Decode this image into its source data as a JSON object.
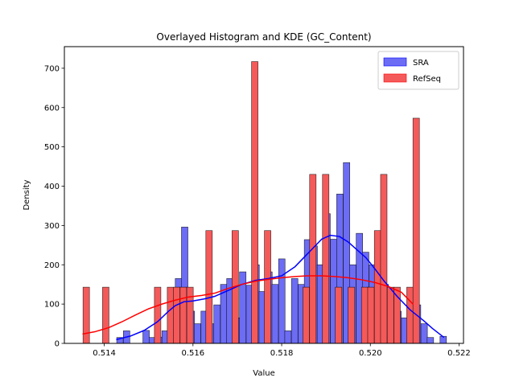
{
  "chart_data": {
    "type": "bar",
    "title": "Overlayed Histogram and KDE (GC_Content)",
    "xlabel": "Value",
    "ylabel": "Density",
    "xlim": [
      0.5131,
      0.5221
    ],
    "ylim": [
      0,
      755
    ],
    "xticks": [
      0.514,
      0.516,
      0.518,
      0.52,
      0.522
    ],
    "xtick_labels": [
      "0.514",
      "0.516",
      "0.518",
      "0.520",
      "0.522"
    ],
    "yticks": [
      0,
      100,
      200,
      300,
      400,
      500,
      600,
      700
    ],
    "ytick_labels": [
      "0",
      "100",
      "200",
      "300",
      "400",
      "500",
      "600",
      "700"
    ],
    "grid": false,
    "legend_position": "top-right",
    "series": [
      {
        "name": "SRA",
        "color": "#0000ff",
        "bar_color": "#6c6cf4",
        "bin_width": 0.000146,
        "bins": [
          [
            0.51428,
            15
          ],
          [
            0.51443,
            32
          ],
          [
            0.51458,
            0
          ],
          [
            0.51472,
            0
          ],
          [
            0.51487,
            33
          ],
          [
            0.51501,
            15
          ],
          [
            0.51516,
            16
          ],
          [
            0.5153,
            32
          ],
          [
            0.51545,
            80
          ],
          [
            0.5156,
            165
          ],
          [
            0.51574,
            296
          ],
          [
            0.51589,
            82
          ],
          [
            0.51603,
            50
          ],
          [
            0.51618,
            82
          ],
          [
            0.51633,
            50
          ],
          [
            0.51647,
            98
          ],
          [
            0.51662,
            150
          ],
          [
            0.51676,
            165
          ],
          [
            0.51691,
            65
          ],
          [
            0.51705,
            182
          ],
          [
            0.5172,
            148
          ],
          [
            0.51735,
            200
          ],
          [
            0.51749,
            132
          ],
          [
            0.51764,
            182
          ],
          [
            0.51778,
            150
          ],
          [
            0.51793,
            215
          ],
          [
            0.51807,
            32
          ],
          [
            0.51822,
            165
          ],
          [
            0.51837,
            150
          ],
          [
            0.51851,
            264
          ],
          [
            0.51866,
            248
          ],
          [
            0.5188,
            200
          ],
          [
            0.51895,
            330
          ],
          [
            0.5191,
            265
          ],
          [
            0.51924,
            380
          ],
          [
            0.51939,
            460
          ],
          [
            0.51953,
            200
          ],
          [
            0.51968,
            280
          ],
          [
            0.51982,
            232
          ],
          [
            0.51997,
            200
          ],
          [
            0.52012,
            168
          ],
          [
            0.52026,
            150
          ],
          [
            0.52041,
            118
          ],
          [
            0.52055,
            82
          ],
          [
            0.5207,
            65
          ],
          [
            0.52085,
            50
          ],
          [
            0.52099,
            98
          ],
          [
            0.52114,
            50
          ],
          [
            0.52128,
            15
          ],
          [
            0.52143,
            0
          ],
          [
            0.52157,
            18
          ]
        ],
        "kde": [
          [
            0.51428,
            10
          ],
          [
            0.5146,
            19
          ],
          [
            0.5149,
            33
          ],
          [
            0.5152,
            55
          ],
          [
            0.51545,
            82
          ],
          [
            0.5156,
            96
          ],
          [
            0.5158,
            106
          ],
          [
            0.516,
            108
          ],
          [
            0.51625,
            113
          ],
          [
            0.5165,
            120
          ],
          [
            0.5168,
            135
          ],
          [
            0.5171,
            150
          ],
          [
            0.5174,
            160
          ],
          [
            0.5177,
            165
          ],
          [
            0.518,
            172
          ],
          [
            0.5183,
            195
          ],
          [
            0.5186,
            230
          ],
          [
            0.5189,
            265
          ],
          [
            0.5191,
            275
          ],
          [
            0.5193,
            272
          ],
          [
            0.5195,
            258
          ],
          [
            0.5197,
            238
          ],
          [
            0.5199,
            218
          ],
          [
            0.5201,
            190
          ],
          [
            0.5203,
            160
          ],
          [
            0.5206,
            120
          ],
          [
            0.5209,
            85
          ],
          [
            0.5212,
            58
          ],
          [
            0.5214,
            38
          ],
          [
            0.52165,
            16
          ]
        ]
      },
      {
        "name": "RefSeq",
        "color": "#ff0000",
        "bar_color": "#f45a5a",
        "bin_width": 0.000146,
        "bins": [
          [
            0.51352,
            143
          ],
          [
            0.51367,
            0
          ],
          [
            0.51381,
            0
          ],
          [
            0.51396,
            143
          ],
          [
            0.51411,
            0
          ],
          [
            0.51425,
            0
          ],
          [
            0.5144,
            0
          ],
          [
            0.51454,
            0
          ],
          [
            0.51469,
            0
          ],
          [
            0.51484,
            0
          ],
          [
            0.51498,
            0
          ],
          [
            0.51513,
            143
          ],
          [
            0.51527,
            0
          ],
          [
            0.51542,
            143
          ],
          [
            0.51556,
            143
          ],
          [
            0.51571,
            143
          ],
          [
            0.51586,
            143
          ],
          [
            0.516,
            0
          ],
          [
            0.51615,
            0
          ],
          [
            0.51629,
            287
          ],
          [
            0.51644,
            0
          ],
          [
            0.51659,
            0
          ],
          [
            0.51673,
            0
          ],
          [
            0.51688,
            287
          ],
          [
            0.51702,
            0
          ],
          [
            0.51717,
            0
          ],
          [
            0.51732,
            717
          ],
          [
            0.51746,
            0
          ],
          [
            0.51761,
            287
          ],
          [
            0.51775,
            0
          ],
          [
            0.5179,
            0
          ],
          [
            0.51805,
            0
          ],
          [
            0.51819,
            0
          ],
          [
            0.51834,
            0
          ],
          [
            0.51848,
            143
          ],
          [
            0.51863,
            430
          ],
          [
            0.51877,
            0
          ],
          [
            0.51892,
            430
          ],
          [
            0.51907,
            0
          ],
          [
            0.51921,
            143
          ],
          [
            0.51936,
            0
          ],
          [
            0.5195,
            143
          ],
          [
            0.51965,
            0
          ],
          [
            0.5198,
            143
          ],
          [
            0.51994,
            143
          ],
          [
            0.52009,
            287
          ],
          [
            0.52023,
            430
          ],
          [
            0.52038,
            143
          ],
          [
            0.52053,
            143
          ],
          [
            0.52067,
            0
          ],
          [
            0.52082,
            143
          ],
          [
            0.52096,
            573
          ]
        ],
        "kde": [
          [
            0.51352,
            24
          ],
          [
            0.5138,
            30
          ],
          [
            0.5141,
            40
          ],
          [
            0.5144,
            55
          ],
          [
            0.5147,
            72
          ],
          [
            0.515,
            88
          ],
          [
            0.5153,
            100
          ],
          [
            0.5156,
            110
          ],
          [
            0.5159,
            118
          ],
          [
            0.5162,
            122
          ],
          [
            0.5165,
            128
          ],
          [
            0.5168,
            140
          ],
          [
            0.5171,
            150
          ],
          [
            0.5174,
            158
          ],
          [
            0.5177,
            163
          ],
          [
            0.518,
            167
          ],
          [
            0.5183,
            170
          ],
          [
            0.5186,
            172
          ],
          [
            0.5189,
            172
          ],
          [
            0.5192,
            170
          ],
          [
            0.5195,
            167
          ],
          [
            0.5198,
            162
          ],
          [
            0.5201,
            155
          ],
          [
            0.5204,
            145
          ],
          [
            0.5207,
            130
          ],
          [
            0.52096,
            100
          ]
        ]
      }
    ]
  }
}
